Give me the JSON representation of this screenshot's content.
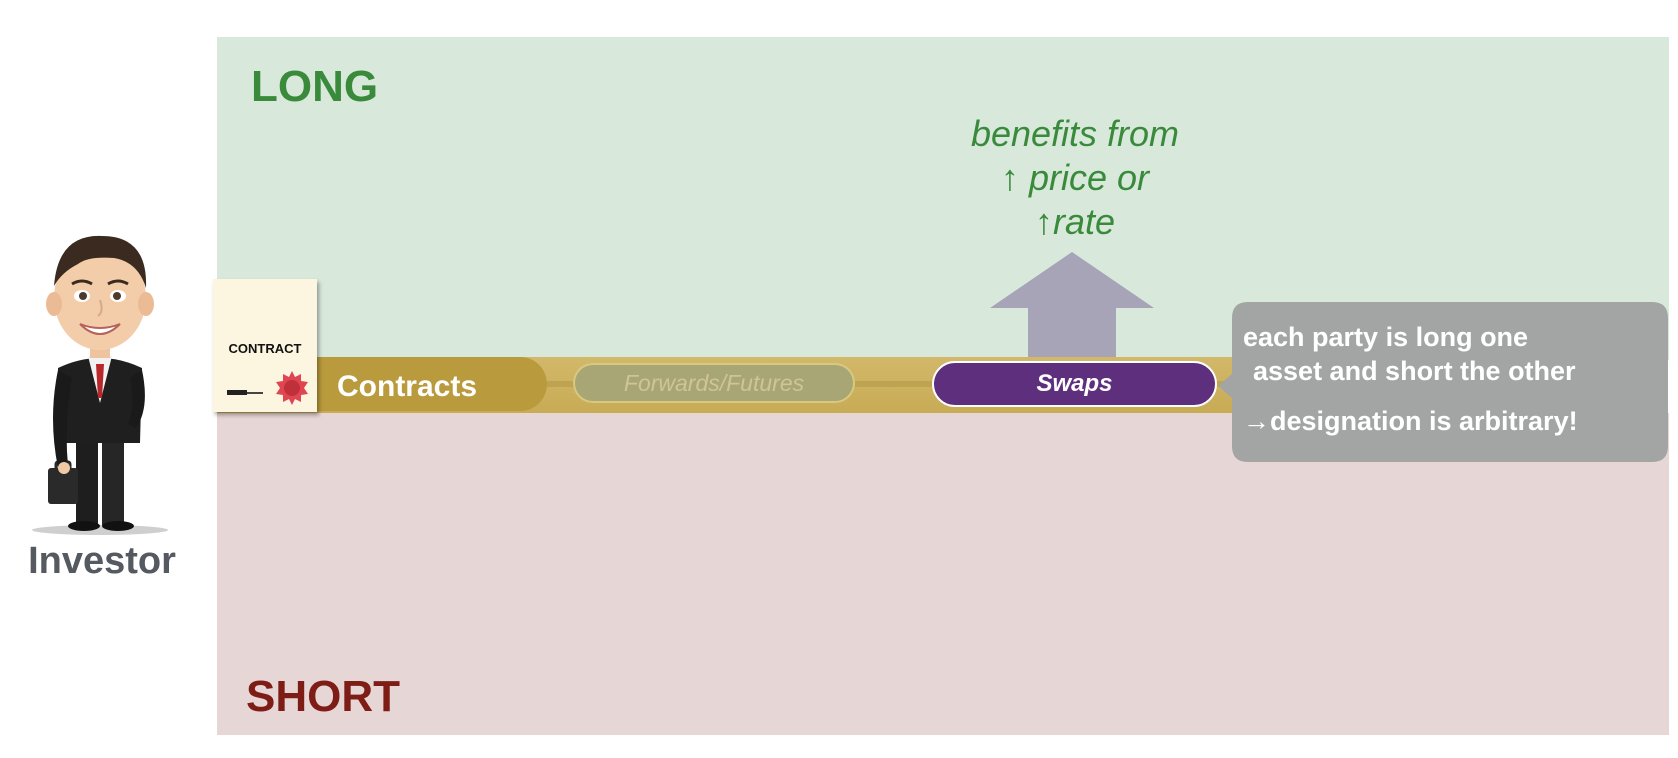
{
  "panels": {
    "long_label": "LONG",
    "short_label": "SHORT",
    "long_color": "#d8e9dc",
    "short_color": "#e6d6d5"
  },
  "annotation": {
    "line1": "benefits from",
    "line2": "↑ price or",
    "line3": "↑rate"
  },
  "band": {
    "contracts_label": "Contracts",
    "forwards_label": "Forwards/Futures",
    "swaps_label": "Swaps"
  },
  "contract_doc": {
    "title": "CONTRACT"
  },
  "investor": {
    "label": "Investor"
  },
  "callout": {
    "line1": "each party is long one",
    "line2": "asset and short the other",
    "line3": "→designation is arbitrary!"
  },
  "colors": {
    "long_text": "#3a8a3c",
    "short_text": "#7e1d16",
    "swaps": "#5e2f7c",
    "band": "#c8ab55",
    "callout": "#a3a5a4"
  }
}
